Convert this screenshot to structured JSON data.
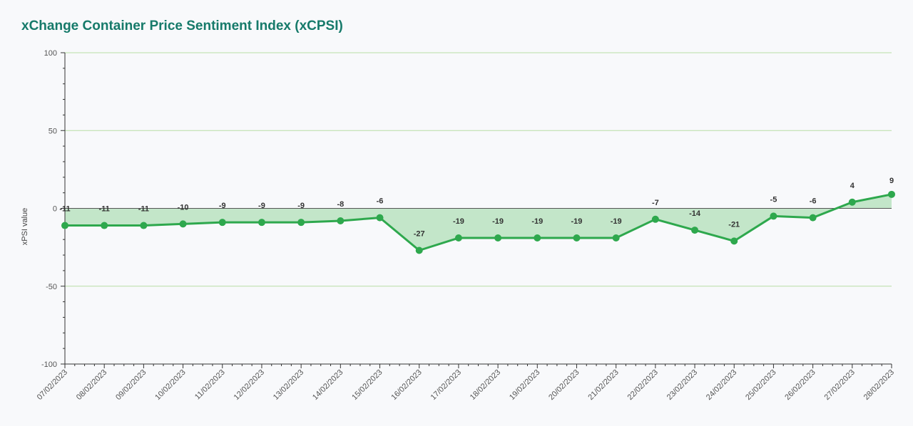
{
  "chart_data": {
    "type": "area",
    "title": "xChange Container Price Sentiment Index (xCPSI)",
    "xlabel": "",
    "ylabel": "xPSI value",
    "ylim": [
      -100,
      100
    ],
    "yticks": [
      100,
      50,
      0,
      -50,
      -100
    ],
    "grid": true,
    "categories": [
      "07/02/2023",
      "08/02/2023",
      "09/02/2023",
      "10/02/2023",
      "11/02/2023",
      "12/02/2023",
      "13/02/2023",
      "14/02/2023",
      "15/02/2023",
      "16/02/2023",
      "17/02/2023",
      "18/02/2023",
      "19/02/2023",
      "20/02/2023",
      "21/02/2023",
      "22/02/2023",
      "23/02/2023",
      "24/02/2023",
      "25/02/2023",
      "26/02/2023",
      "27/02/2023",
      "28/02/2023"
    ],
    "series": [
      {
        "values": [
          -11,
          -11,
          -11,
          -10,
          -9,
          -9,
          -9,
          -8,
          -6,
          -27,
          -19,
          -19,
          -19,
          -19,
          -19,
          -7,
          -14,
          -21,
          -5,
          -6,
          4,
          9
        ]
      }
    ],
    "colors": {
      "line": "#2ea84d",
      "fill": "#c3e6c9",
      "grid": "#b7dea5",
      "title": "#167a6a"
    }
  }
}
